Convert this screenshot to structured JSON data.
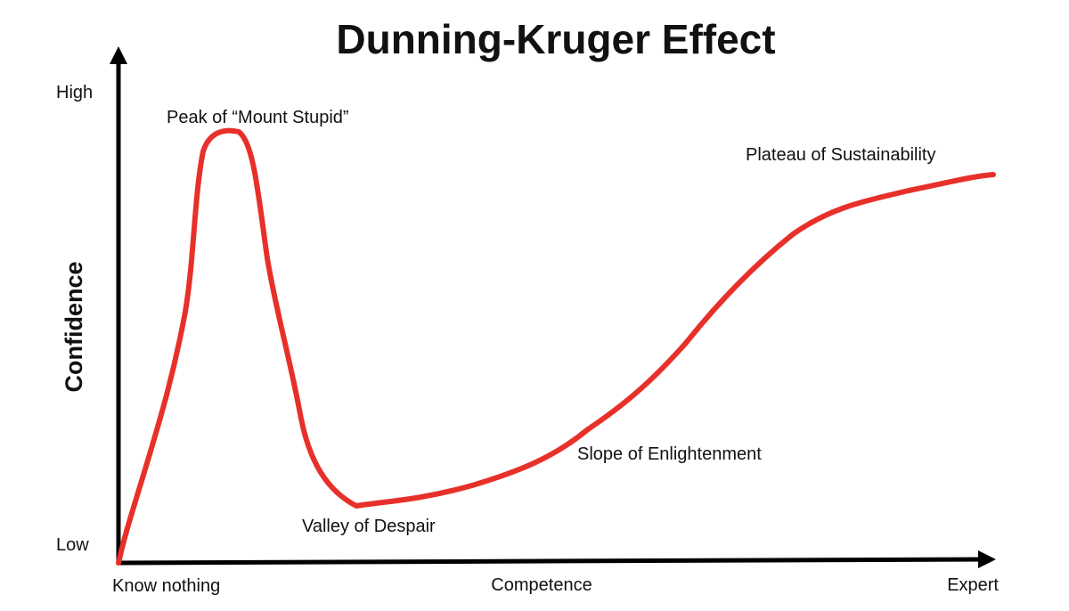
{
  "title": "Dunning-Kruger Effect",
  "y_axis": {
    "label": "Confidence",
    "high": "High",
    "low": "Low"
  },
  "x_axis": {
    "label": "Competence",
    "start": "Know nothing",
    "end": "Expert"
  },
  "annotations": {
    "peak": "Peak of “Mount Stupid”",
    "valley": "Valley of Despair",
    "slope": "Slope of Enlightenment",
    "plateau": "Plateau of Sustainability"
  }
}
